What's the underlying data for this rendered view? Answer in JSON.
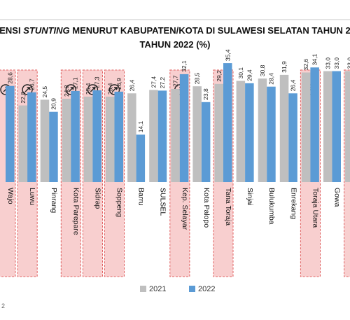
{
  "chart_data": {
    "type": "bar",
    "title_prefix": "ENSI",
    "title_emphasis": "STUNTING",
    "title_suffix": "MENURUT KABUPATEN/KOTA DI SULAWESI SELATAN TAHUN 2",
    "subtitle": "TAHUN 2022 (%)",
    "footnote": "2",
    "categories": [
      "Wajo",
      "Luwu",
      "Pinrang",
      "Kota Parepare",
      "Sidrap",
      "Soppeng",
      "Barru",
      "SULSEL",
      "Kep. Selayar",
      "Kota Palopo",
      "Tana Toraja",
      "Sinjai",
      "Bulukumba",
      "Enrekang",
      "Toraja Utara",
      "Gowa",
      ""
    ],
    "series": [
      {
        "name": "2021",
        "color": "#BFBFBF",
        "values": [
          null,
          22.8,
          24.5,
          24.8,
          25.4,
          25.4,
          26.4,
          27.4,
          27.7,
          28.5,
          29.2,
          30.1,
          30.8,
          31.9,
          32.6,
          33.0,
          33.0
        ]
      },
      {
        "name": "2022",
        "color": "#5B9BD5",
        "values": [
          28.6,
          26.7,
          20.9,
          27.1,
          27.3,
          26.9,
          14.1,
          27.2,
          32.1,
          23.8,
          35.4,
          29.4,
          28.4,
          26.4,
          34.1,
          33.0,
          null
        ]
      }
    ],
    "value_labels": {
      "2021": [
        "",
        "22,8",
        "24,5",
        "24,8",
        "25,4",
        "25,4",
        "26,4",
        "27,4",
        "27,7",
        "28,5",
        "29,2",
        "30,1",
        "30,8",
        "31,9",
        "32,6",
        "33,0",
        "33,0"
      ],
      "2022": [
        "28,6",
        "26,7",
        "20,9",
        "27,1",
        "27,3",
        "26,9",
        "14,1",
        "27,2",
        "32,1",
        "23,8",
        "35,4",
        "29,4",
        "28,4",
        "26,4",
        "34,1",
        "33,0",
        ""
      ]
    },
    "highlighted": [
      true,
      true,
      false,
      true,
      true,
      true,
      false,
      false,
      true,
      false,
      true,
      false,
      false,
      false,
      true,
      false,
      true
    ],
    "rising_indicator": [
      true,
      true,
      false,
      true,
      true,
      true,
      false,
      false,
      true,
      false,
      true,
      false,
      false,
      false,
      true,
      false,
      true
    ],
    "highlight_color": "#F8CFCF",
    "highlight_border": "#E06060",
    "ylim": [
      0,
      40
    ],
    "legend_position": "bottom-center"
  }
}
